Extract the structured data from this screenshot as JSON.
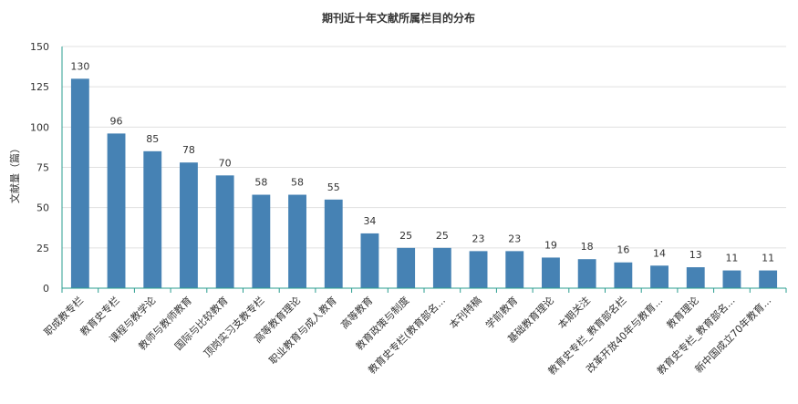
{
  "chart_data": {
    "type": "bar",
    "title": "期刊近十年文献所属栏目的分布",
    "ylabel": "文献量（篇）",
    "xlabel": "",
    "ylim": [
      0,
      150
    ],
    "yticks": [
      0,
      25,
      50,
      75,
      100,
      125,
      150
    ],
    "grid": true,
    "bar_color": "#4682b4",
    "categories": [
      "职成教专栏",
      "教育史专栏",
      "课程与教学论",
      "教师与教师教育",
      "国际与比较教育",
      "顶岗实习支教专栏",
      "高等教育理论",
      "职业教育与成人教育",
      "高等教育",
      "教育政策与制度",
      "教育史专栏(教育部名...",
      "本刊特稿",
      "学前教育",
      "基础教育理论",
      "本期关注",
      "教育史专栏_教育部名栏",
      "改革开放40年与教育...",
      "教育理论",
      "教育史专栏_教育部名...",
      "新中国成立70年教育..."
    ],
    "values": [
      130,
      96,
      85,
      78,
      70,
      58,
      58,
      55,
      34,
      25,
      25,
      23,
      23,
      19,
      18,
      16,
      14,
      13,
      11,
      11
    ]
  }
}
